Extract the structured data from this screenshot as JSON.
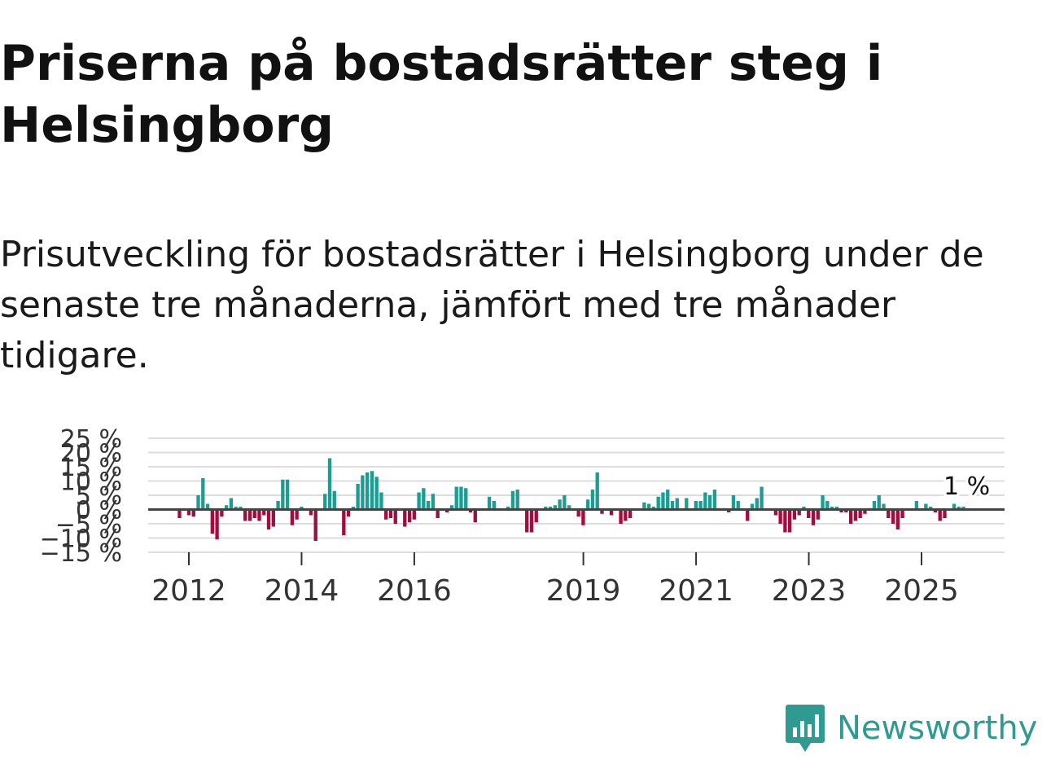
{
  "header": {
    "title": "Priserna på bostadsrätter steg i Helsingborg",
    "subtitle": "Prisutveckling för bostadsrätter i Helsingborg under de senaste tre månaderna, jämfört med tre månader tidigare."
  },
  "brand": {
    "name": "Newsworthy",
    "logo_icon": "newsworthy-logo-icon",
    "color": "#2f9a8f"
  },
  "colors": {
    "positive": "#1a9e93",
    "negative": "#a10d3f",
    "grid": "#dddddd",
    "zero_line": "#444444"
  },
  "chart_data": {
    "type": "bar",
    "title": "Priserna på bostadsrätter steg i Helsingborg",
    "xlabel": "",
    "ylabel": "",
    "ylim": [
      -15,
      25
    ],
    "y_ticks": [
      -15,
      -10,
      -5,
      0,
      5,
      10,
      15,
      20,
      25
    ],
    "y_tick_labels": [
      "−15 %",
      "−10 %",
      "−5 %",
      "0 %",
      "5 %",
      "10 %",
      "15 %",
      "20 %",
      "25 %"
    ],
    "x_ticks": [
      2012,
      2014,
      2016,
      2019,
      2021,
      2023,
      2025
    ],
    "x_tick_labels": [
      "2012",
      "2014",
      "2016",
      "2019",
      "2021",
      "2023",
      "2025"
    ],
    "x_start": 2011.75,
    "step_years": 0.0833,
    "unit": "%",
    "last_value_label": "1 %",
    "values": [
      0,
      -3,
      0,
      -2,
      -2.5,
      5,
      11,
      2,
      -8.5,
      -10.5,
      -2.5,
      1.5,
      4,
      1,
      1,
      -4,
      -4,
      -3,
      -4,
      -2,
      -7,
      -6,
      3,
      10.5,
      10.5,
      -5.5,
      -3.5,
      1,
      0,
      -2,
      -11,
      0,
      5.5,
      18,
      6.5,
      0,
      -9,
      -2.5,
      1,
      9,
      12,
      13,
      13.5,
      11.5,
      6,
      -3.5,
      -3,
      -5,
      0,
      -6,
      -4.5,
      -3.5,
      6,
      7.5,
      3,
      5.5,
      -3,
      0,
      -1,
      1.5,
      8,
      8,
      7.5,
      -1,
      -4.5,
      0,
      0,
      4.5,
      3,
      0,
      0,
      1,
      6.5,
      7,
      0,
      -8,
      -8,
      -4.5,
      0,
      1,
      1,
      1.5,
      3.5,
      5,
      1.5,
      0,
      -2.5,
      -5.5,
      3.5,
      7,
      13,
      -1.5,
      0,
      -2,
      0,
      -5,
      -4,
      -3,
      0,
      0,
      2.5,
      2,
      1,
      4.5,
      6,
      7,
      3,
      4,
      0,
      4,
      0,
      3,
      3,
      6,
      5,
      7,
      0.5,
      0.5,
      -1,
      5,
      3,
      0,
      -4,
      2,
      4,
      8,
      0,
      0,
      -2,
      -5,
      -8,
      -8,
      -3.5,
      -2,
      1,
      -3,
      -5.5,
      -3.5,
      5,
      3,
      1,
      1,
      -1,
      -1,
      -5,
      -4,
      -3,
      -1.5,
      0.5,
      3,
      5,
      2,
      -3,
      -5,
      -7,
      -3,
      0,
      0,
      3,
      0,
      2,
      1,
      -1,
      -4,
      -3,
      0,
      2,
      1,
      1
    ]
  }
}
